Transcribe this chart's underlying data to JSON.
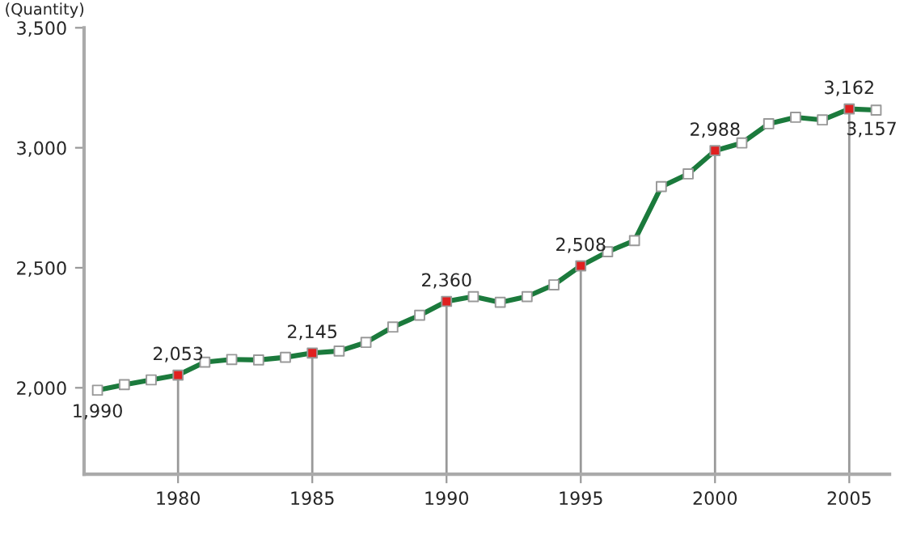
{
  "chart_data": {
    "type": "line",
    "ylabel": "(Quantity)",
    "x": [
      1977,
      1978,
      1979,
      1980,
      1981,
      1982,
      1983,
      1984,
      1985,
      1986,
      1987,
      1988,
      1989,
      1990,
      1991,
      1992,
      1993,
      1994,
      1995,
      1996,
      1997,
      1998,
      1999,
      2000,
      2001,
      2002,
      2003,
      2004,
      2005,
      2006
    ],
    "series": [
      {
        "color": "#1b7a3c",
        "values": [
          1990,
          2013,
          2033,
          2053,
          2107,
          2118,
          2116,
          2127,
          2145,
          2153,
          2189,
          2253,
          2302,
          2360,
          2380,
          2356,
          2380,
          2429,
          2508,
          2567,
          2613,
          2838,
          2891,
          2988,
          3020,
          3100,
          3127,
          3116,
          3162,
          3157
        ],
        "colors": [
          "#ffffff",
          "#ffffff",
          "#ffffff",
          "#e02020",
          "#ffffff",
          "#ffffff",
          "#ffffff",
          "#ffffff",
          "#e02020",
          "#ffffff",
          "#ffffff",
          "#ffffff",
          "#ffffff",
          "#e02020",
          "#ffffff",
          "#ffffff",
          "#ffffff",
          "#ffffff",
          "#e02020",
          "#ffffff",
          "#ffffff",
          "#ffffff",
          "#ffffff",
          "#e02020",
          "#ffffff",
          "#ffffff",
          "#ffffff",
          "#ffffff",
          "#e02020",
          "#ffffff"
        ],
        "value_labels": [
          "1,990",
          null,
          null,
          "2,053",
          null,
          null,
          null,
          null,
          "2,145",
          null,
          null,
          null,
          null,
          "2,360",
          null,
          null,
          null,
          null,
          "2,508",
          null,
          null,
          null,
          null,
          "2,988",
          null,
          null,
          null,
          null,
          "3,162",
          "3,157"
        ]
      }
    ],
    "xlim": [
      1976.5,
      2006.5
    ],
    "ylim": [
      1640,
      3500
    ],
    "xticks": [
      1980,
      1985,
      1990,
      1995,
      2000,
      2005
    ],
    "yticks": [
      {
        "value": 2000,
        "label": "2,000"
      },
      {
        "value": 2500,
        "label": "2,500"
      },
      {
        "value": 3000,
        "label": "3,000"
      },
      {
        "value": 3500,
        "label": "3,500"
      }
    ],
    "ref_lines": [
      {
        "axis": "x",
        "value": 1980,
        "color": "#999999"
      },
      {
        "axis": "x",
        "value": 1985,
        "color": "#999999"
      },
      {
        "axis": "x",
        "value": 1990,
        "color": "#999999"
      },
      {
        "axis": "x",
        "value": 1995,
        "color": "#999999"
      },
      {
        "axis": "x",
        "value": 2000,
        "color": "#999999"
      },
      {
        "axis": "x",
        "value": 2005,
        "color": "#999999"
      }
    ],
    "marker": "square",
    "line_style": "solid",
    "grid": false,
    "legend": false
  }
}
